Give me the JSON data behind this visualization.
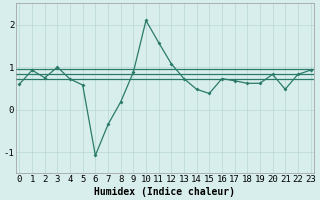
{
  "xlabel": "Humidex (Indice chaleur)",
  "x": [
    0,
    1,
    2,
    3,
    4,
    5,
    6,
    7,
    8,
    9,
    10,
    11,
    12,
    13,
    14,
    15,
    16,
    17,
    18,
    19,
    20,
    21,
    22,
    23
  ],
  "y_main": [
    0.6,
    0.93,
    0.75,
    1.0,
    0.72,
    0.58,
    -1.08,
    -0.35,
    0.18,
    0.88,
    2.1,
    1.58,
    1.08,
    0.73,
    0.48,
    0.38,
    0.73,
    0.68,
    0.62,
    0.62,
    0.83,
    0.48,
    0.83,
    0.93
  ],
  "y_line1": 0.72,
  "y_line2": 0.85,
  "y_line3": 0.95,
  "line_color": "#2a7a6a",
  "bg_color": "#d8eeec",
  "grid_color": "#b8d8d4",
  "ylim": [
    -1.5,
    2.5
  ],
  "yticks": [
    -1,
    0,
    1,
    2
  ],
  "xticks": [
    0,
    1,
    2,
    3,
    4,
    5,
    6,
    7,
    8,
    9,
    10,
    11,
    12,
    13,
    14,
    15,
    16,
    17,
    18,
    19,
    20,
    21,
    22,
    23
  ],
  "xlabel_fontsize": 7,
  "tick_fontsize": 6.5
}
